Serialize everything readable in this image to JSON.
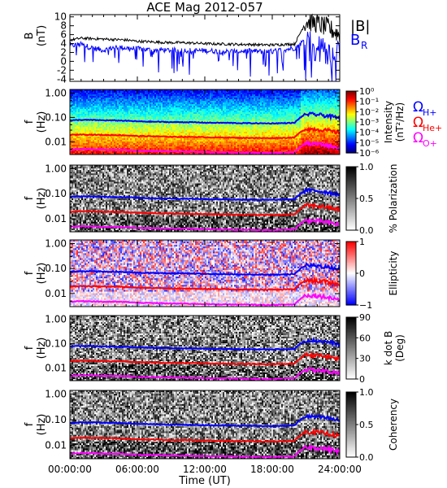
{
  "title": "ACE Mag 2012-057",
  "chart_data": [
    {
      "type": "line",
      "panel": "magnetic-field",
      "ylabel": "B",
      "yunit": "(nT)",
      "ylim": [
        -4.5,
        10.5
      ],
      "yticks": [
        10,
        8,
        6,
        4,
        2,
        0,
        -2,
        -4
      ],
      "x": [
        0,
        1,
        2,
        3,
        4,
        5,
        6,
        7,
        8,
        9,
        10,
        11,
        12,
        13,
        14,
        15,
        16,
        17,
        18,
        19,
        20,
        21,
        22,
        23,
        24
      ],
      "series": [
        {
          "name": "|B|",
          "color": "#000000",
          "values": [
            4.8,
            5.2,
            5.1,
            5.0,
            4.9,
            4.8,
            4.5,
            4.4,
            4.3,
            4.2,
            4.2,
            4.1,
            4.0,
            3.9,
            3.9,
            3.8,
            3.8,
            3.7,
            3.7,
            3.8,
            3.9,
            9.0,
            8.5,
            7.5,
            6.0
          ]
        },
        {
          "name": "B",
          "subscript": "R",
          "color": "#0000ff",
          "values": [
            3.5,
            3.8,
            3.0,
            2.5,
            3.2,
            3.0,
            2.8,
            2.6,
            2.6,
            2.5,
            2.5,
            2.4,
            2.4,
            2.3,
            2.2,
            2.3,
            2.3,
            2.2,
            2.2,
            2.6,
            3.0,
            5.0,
            4.0,
            3.0,
            2.0
          ]
        }
      ]
    },
    {
      "type": "heatmap",
      "panel": "intensity",
      "ylabel": "f",
      "yunit": "(Hz)",
      "yscale": "log",
      "ylim": [
        0.003,
        1.0
      ],
      "yticks": [
        "1.00",
        "0.10",
        "0.01"
      ],
      "colorbar": {
        "label": "Intensity",
        "unit": "(nT²/Hz)",
        "scale": "log",
        "ticks": [
          "10⁰",
          "10⁻¹",
          "10⁻²",
          "10⁻³",
          "10⁻⁴",
          "10⁻⁵",
          "10⁻⁶"
        ],
        "range": [
          1e-06,
          1
        ]
      }
    },
    {
      "type": "heatmap",
      "panel": "polarization",
      "ylabel": "f",
      "yunit": "(Hz)",
      "yscale": "log",
      "yticks": [
        "1.00",
        "0.10",
        "0.01"
      ],
      "colorbar": {
        "label": "% Polarization",
        "ticks": [
          "1.0",
          "0.5",
          "0.0"
        ],
        "range": [
          0,
          1
        ]
      }
    },
    {
      "type": "heatmap",
      "panel": "ellipticity",
      "ylabel": "f",
      "yunit": "(Hz)",
      "yscale": "log",
      "yticks": [
        "1.00",
        "0.10",
        "0.01"
      ],
      "colorbar": {
        "label": "Ellipticity",
        "ticks": [
          "1",
          "0",
          "−1"
        ],
        "range": [
          -1,
          1
        ]
      }
    },
    {
      "type": "heatmap",
      "panel": "kdotb",
      "ylabel": "f",
      "yunit": "(Hz)",
      "yscale": "log",
      "yticks": [
        "1.00",
        "0.10",
        "0.01"
      ],
      "colorbar": {
        "label": "k dot B",
        "unit": "(Deg)",
        "ticks": [
          "90",
          "60",
          "30",
          "0"
        ],
        "range": [
          0,
          90
        ]
      }
    },
    {
      "type": "heatmap",
      "panel": "coherency",
      "ylabel": "f",
      "yunit": "(Hz)",
      "yscale": "log",
      "yticks": [
        "1.00",
        "0.10",
        "0.01"
      ],
      "colorbar": {
        "label": "Coherency",
        "ticks": [
          "1.0",
          "0.5",
          "0.0"
        ],
        "range": [
          0,
          1
        ]
      }
    }
  ],
  "gyrofrequencies": {
    "x": [
      0,
      1,
      2,
      3,
      4,
      5,
      6,
      7,
      8,
      9,
      10,
      11,
      12,
      13,
      14,
      15,
      16,
      17,
      18,
      19,
      20,
      21,
      22,
      23,
      24
    ],
    "series": [
      {
        "name": "Ω",
        "subscript": "H+",
        "color": "#0000ff",
        "values": [
          0.075,
          0.079,
          0.078,
          0.076,
          0.075,
          0.073,
          0.069,
          0.067,
          0.066,
          0.064,
          0.064,
          0.063,
          0.061,
          0.06,
          0.06,
          0.058,
          0.058,
          0.057,
          0.057,
          0.058,
          0.06,
          0.137,
          0.13,
          0.114,
          0.092
        ]
      },
      {
        "name": "Ω",
        "subscript": "He+",
        "color": "#ff0000",
        "values": [
          0.019,
          0.02,
          0.0195,
          0.019,
          0.0188,
          0.0183,
          0.0172,
          0.0168,
          0.0165,
          0.016,
          0.016,
          0.0158,
          0.0153,
          0.015,
          0.015,
          0.0145,
          0.0145,
          0.0142,
          0.0142,
          0.0145,
          0.015,
          0.034,
          0.0325,
          0.0285,
          0.023
        ]
      },
      {
        "name": "Ω",
        "subscript": "O+",
        "color": "#ff00ff",
        "values": [
          0.0047,
          0.005,
          0.0049,
          0.0047,
          0.0047,
          0.0046,
          0.0043,
          0.0042,
          0.0041,
          0.004,
          0.004,
          0.0039,
          0.0038,
          0.0037,
          0.0037,
          0.0036,
          0.0036,
          0.0035,
          0.0035,
          0.0036,
          0.0037,
          0.0086,
          0.0081,
          0.0071,
          0.0057
        ]
      }
    ]
  },
  "xaxis": {
    "label": "Time (UT)",
    "ticks": [
      "00:00:00",
      "06:00:00",
      "12:00:00",
      "18:00:00",
      "24:00:00"
    ],
    "range": [
      0,
      24
    ]
  }
}
